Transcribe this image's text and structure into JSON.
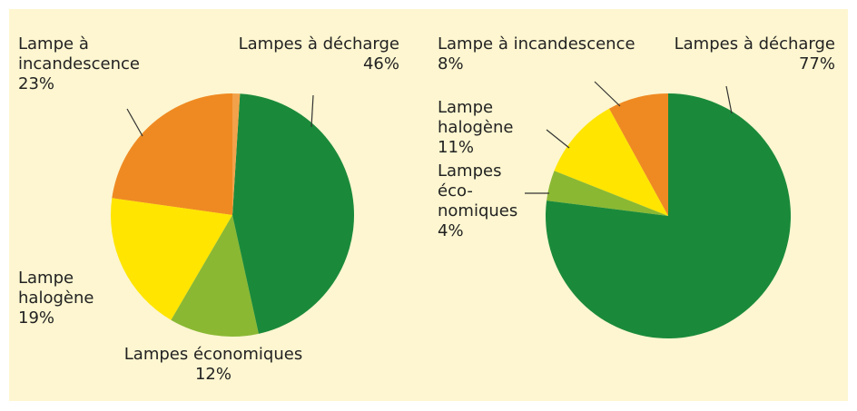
{
  "chart_data": [
    {
      "type": "pie",
      "categories": [
        null,
        "Lampes à décharge",
        "Lampes économiques",
        "Lampe halogène",
        "Lampe à incandescence"
      ],
      "values": [
        1,
        46,
        12,
        19,
        23
      ],
      "value_labels": [
        null,
        "46%",
        "12%",
        "19%",
        "23%"
      ],
      "colors": [
        "#f2a24a",
        "#1a8a3a",
        "#8ab833",
        "#ffe500",
        "#ef8a22"
      ]
    },
    {
      "type": "pie",
      "categories": [
        "Lampes à décharge",
        "Lampes éco-nomiques",
        "Lampe halogène",
        "Lampe à incandescence"
      ],
      "values": [
        77,
        4,
        11,
        8
      ],
      "value_labels": [
        "77%",
        "4%",
        "11%",
        "8%"
      ],
      "colors": [
        "#1a8a3a",
        "#8ab833",
        "#ffe500",
        "#ef8a22"
      ]
    }
  ]
}
